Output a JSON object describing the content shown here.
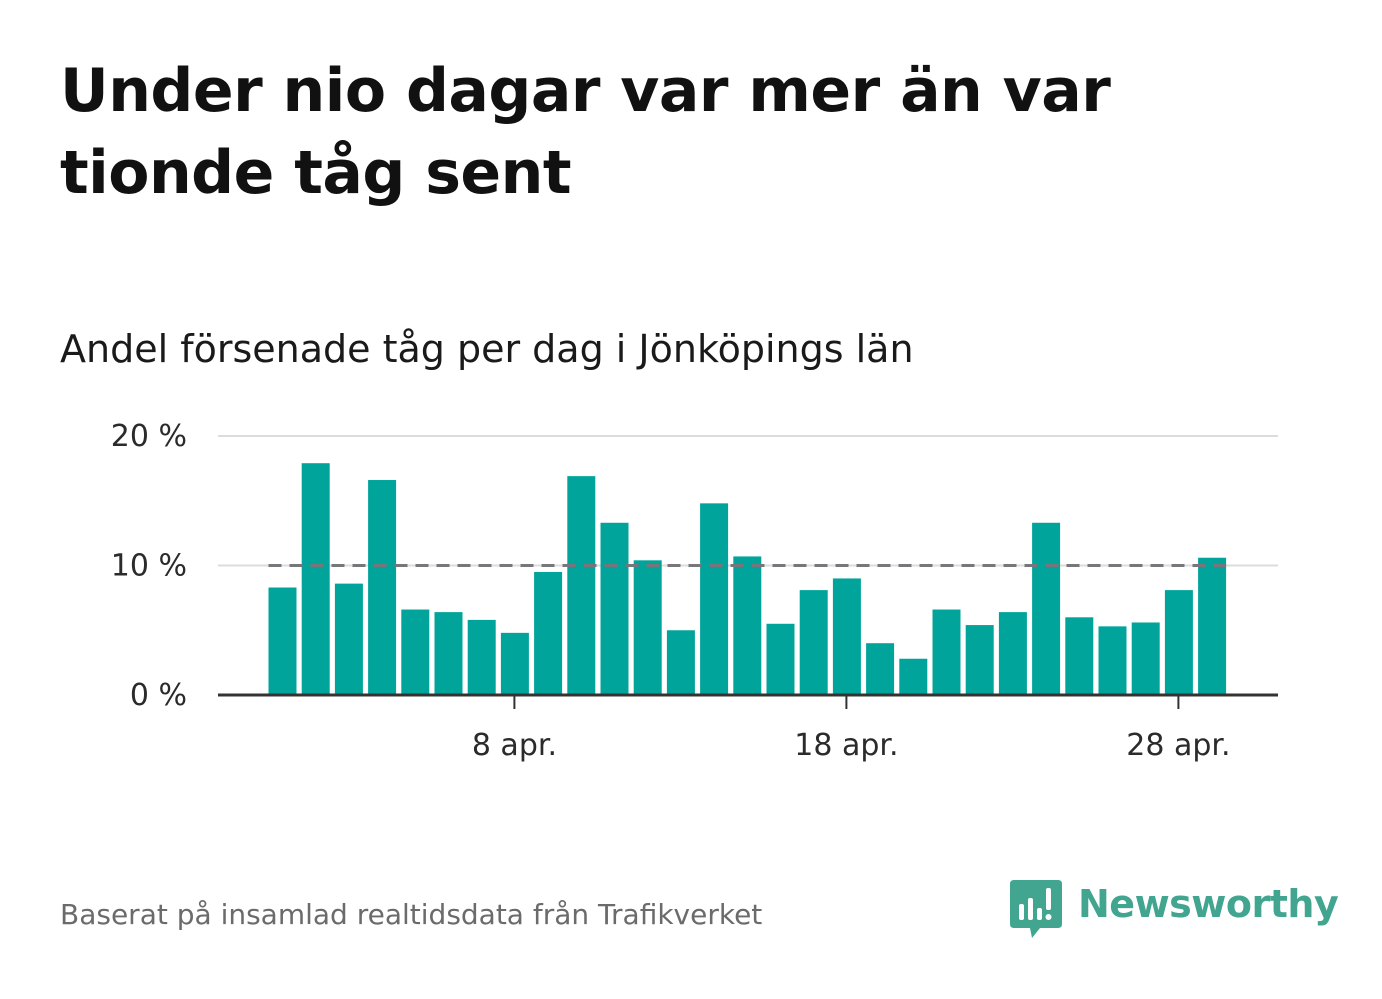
{
  "title": "Under nio dagar var mer än var tionde tåg sent",
  "subtitle": "Andel försenade tåg per dag i Jönköpings län",
  "source": "Baserat på insamlad realtidsdata från Trafikverket",
  "brand": {
    "name": "Newsworthy",
    "color": "#41a590"
  },
  "colors": {
    "bar": "#00a49a",
    "reference": "#77767a",
    "grid": "#dcdcdc",
    "axis": "#333333"
  },
  "chart_data": {
    "type": "bar",
    "xlabel": "",
    "ylabel": "",
    "ylim": [
      0,
      20
    ],
    "yticks": [
      0,
      10,
      20
    ],
    "ytick_labels": [
      "0 %",
      "10 %",
      "20 %"
    ],
    "grid": true,
    "reference_line": 10,
    "x": [
      "2024-04-01",
      "2024-04-02",
      "2024-04-03",
      "2024-04-04",
      "2024-04-05",
      "2024-04-06",
      "2024-04-07",
      "2024-04-08",
      "2024-04-09",
      "2024-04-10",
      "2024-04-11",
      "2024-04-12",
      "2024-04-13",
      "2024-04-14",
      "2024-04-15",
      "2024-04-16",
      "2024-04-17",
      "2024-04-18",
      "2024-04-19",
      "2024-04-20",
      "2024-04-21",
      "2024-04-22",
      "2024-04-23",
      "2024-04-24",
      "2024-04-25",
      "2024-04-26",
      "2024-04-27",
      "2024-04-28",
      "2024-04-29"
    ],
    "xtick_labels": [
      {
        "date": "2024-04-08",
        "label": "8 apr."
      },
      {
        "date": "2024-04-18",
        "label": "18 apr."
      },
      {
        "date": "2024-04-28",
        "label": "28 apr."
      }
    ],
    "values": [
      8.3,
      17.9,
      8.6,
      16.6,
      6.6,
      6.4,
      5.8,
      4.8,
      9.5,
      16.9,
      13.3,
      10.4,
      5.0,
      14.8,
      10.7,
      5.5,
      8.1,
      9.0,
      4.0,
      2.8,
      6.6,
      5.4,
      6.4,
      13.3,
      6.0,
      5.3,
      5.6,
      8.1,
      10.6
    ]
  }
}
